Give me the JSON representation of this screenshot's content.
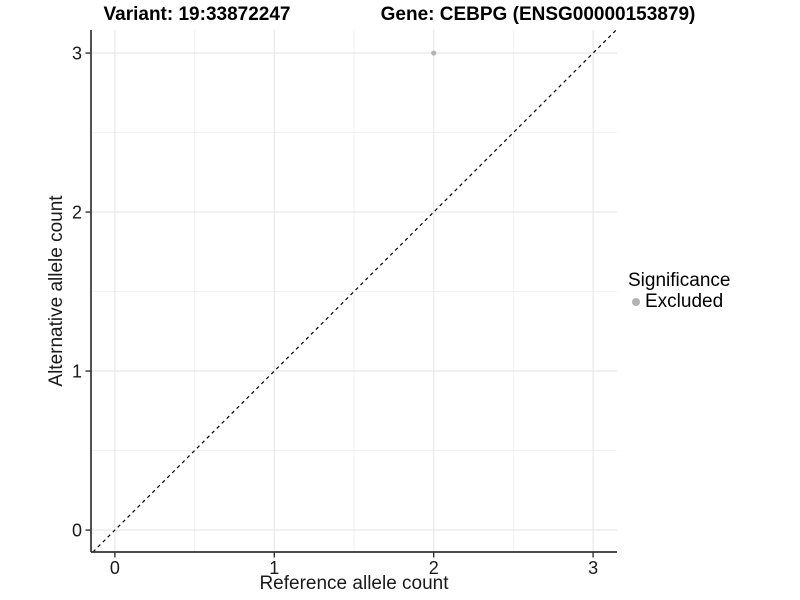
{
  "chart_data": {
    "type": "scatter",
    "title_left": "Variant: 19:33872247",
    "title_right": "Gene: CEBPG (ENSG00000153879)",
    "xlabel": "Reference allele count",
    "ylabel": "Alternative allele count",
    "xlim": [
      -0.15,
      3.15
    ],
    "ylim": [
      -0.138,
      3.145
    ],
    "xticks": [
      0,
      1,
      2,
      3
    ],
    "yticks": [
      0,
      1,
      2,
      3
    ],
    "minor_gridlines": [
      0.5,
      1.5,
      2.5
    ],
    "grid": "major and minor gridlines, light gray on white panel",
    "series": [
      {
        "name": "Excluded",
        "marker": "circle",
        "color": "#b3b3b3",
        "points": [
          {
            "x": 2,
            "y": 3
          }
        ]
      }
    ],
    "reference_line": {
      "type": "identity y=x",
      "style": "dashed",
      "color": "#000000"
    },
    "legend": {
      "title": "Significance",
      "position": "right",
      "items": [
        {
          "label": "Excluded",
          "marker": "circle",
          "color": "#b3b3b3"
        }
      ]
    }
  },
  "colors": {
    "background": "#ffffff",
    "axis_line": "#333333",
    "tick_mark": "#333333",
    "tick_text": "#1a1a1a",
    "grid_major": "#e6e6e6",
    "grid_minor": "#f0f0f0",
    "point": "#b3b3b3",
    "diagonal": "#000000"
  }
}
